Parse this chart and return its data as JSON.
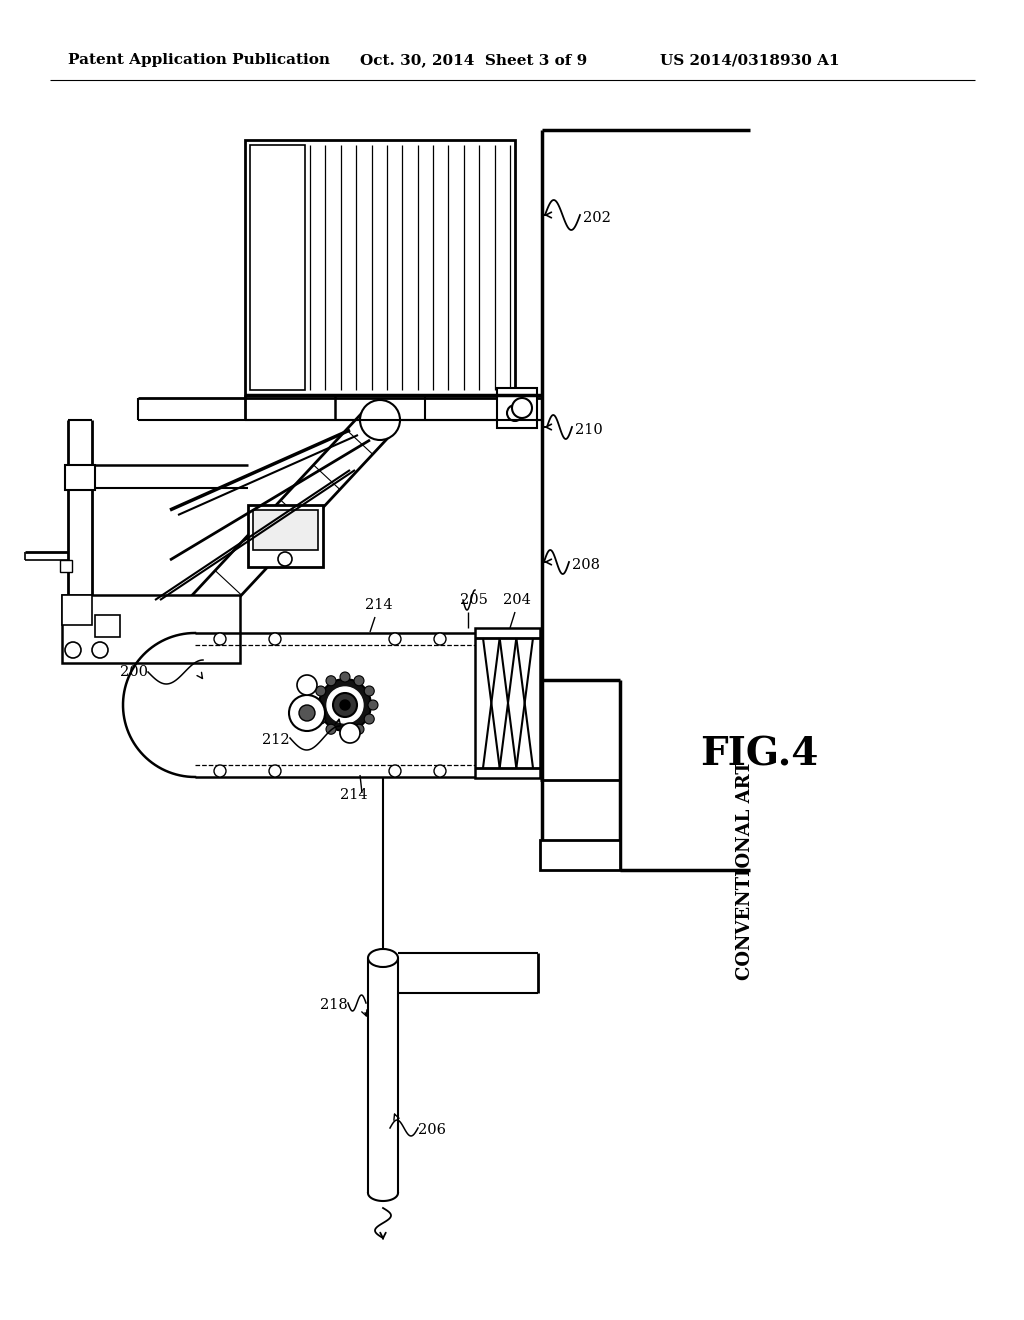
{
  "header_left": "Patent Application Publication",
  "header_mid": "Oct. 30, 2014  Sheet 3 of 9",
  "header_right": "US 2014/0318930 A1",
  "fig_label": "FIG.4",
  "fig_sublabel": "CONVENTIONAL ART",
  "bg_color": "#ffffff",
  "line_color": "#000000",
  "header_fontsize": 11,
  "ref_fontsize": 10.5
}
